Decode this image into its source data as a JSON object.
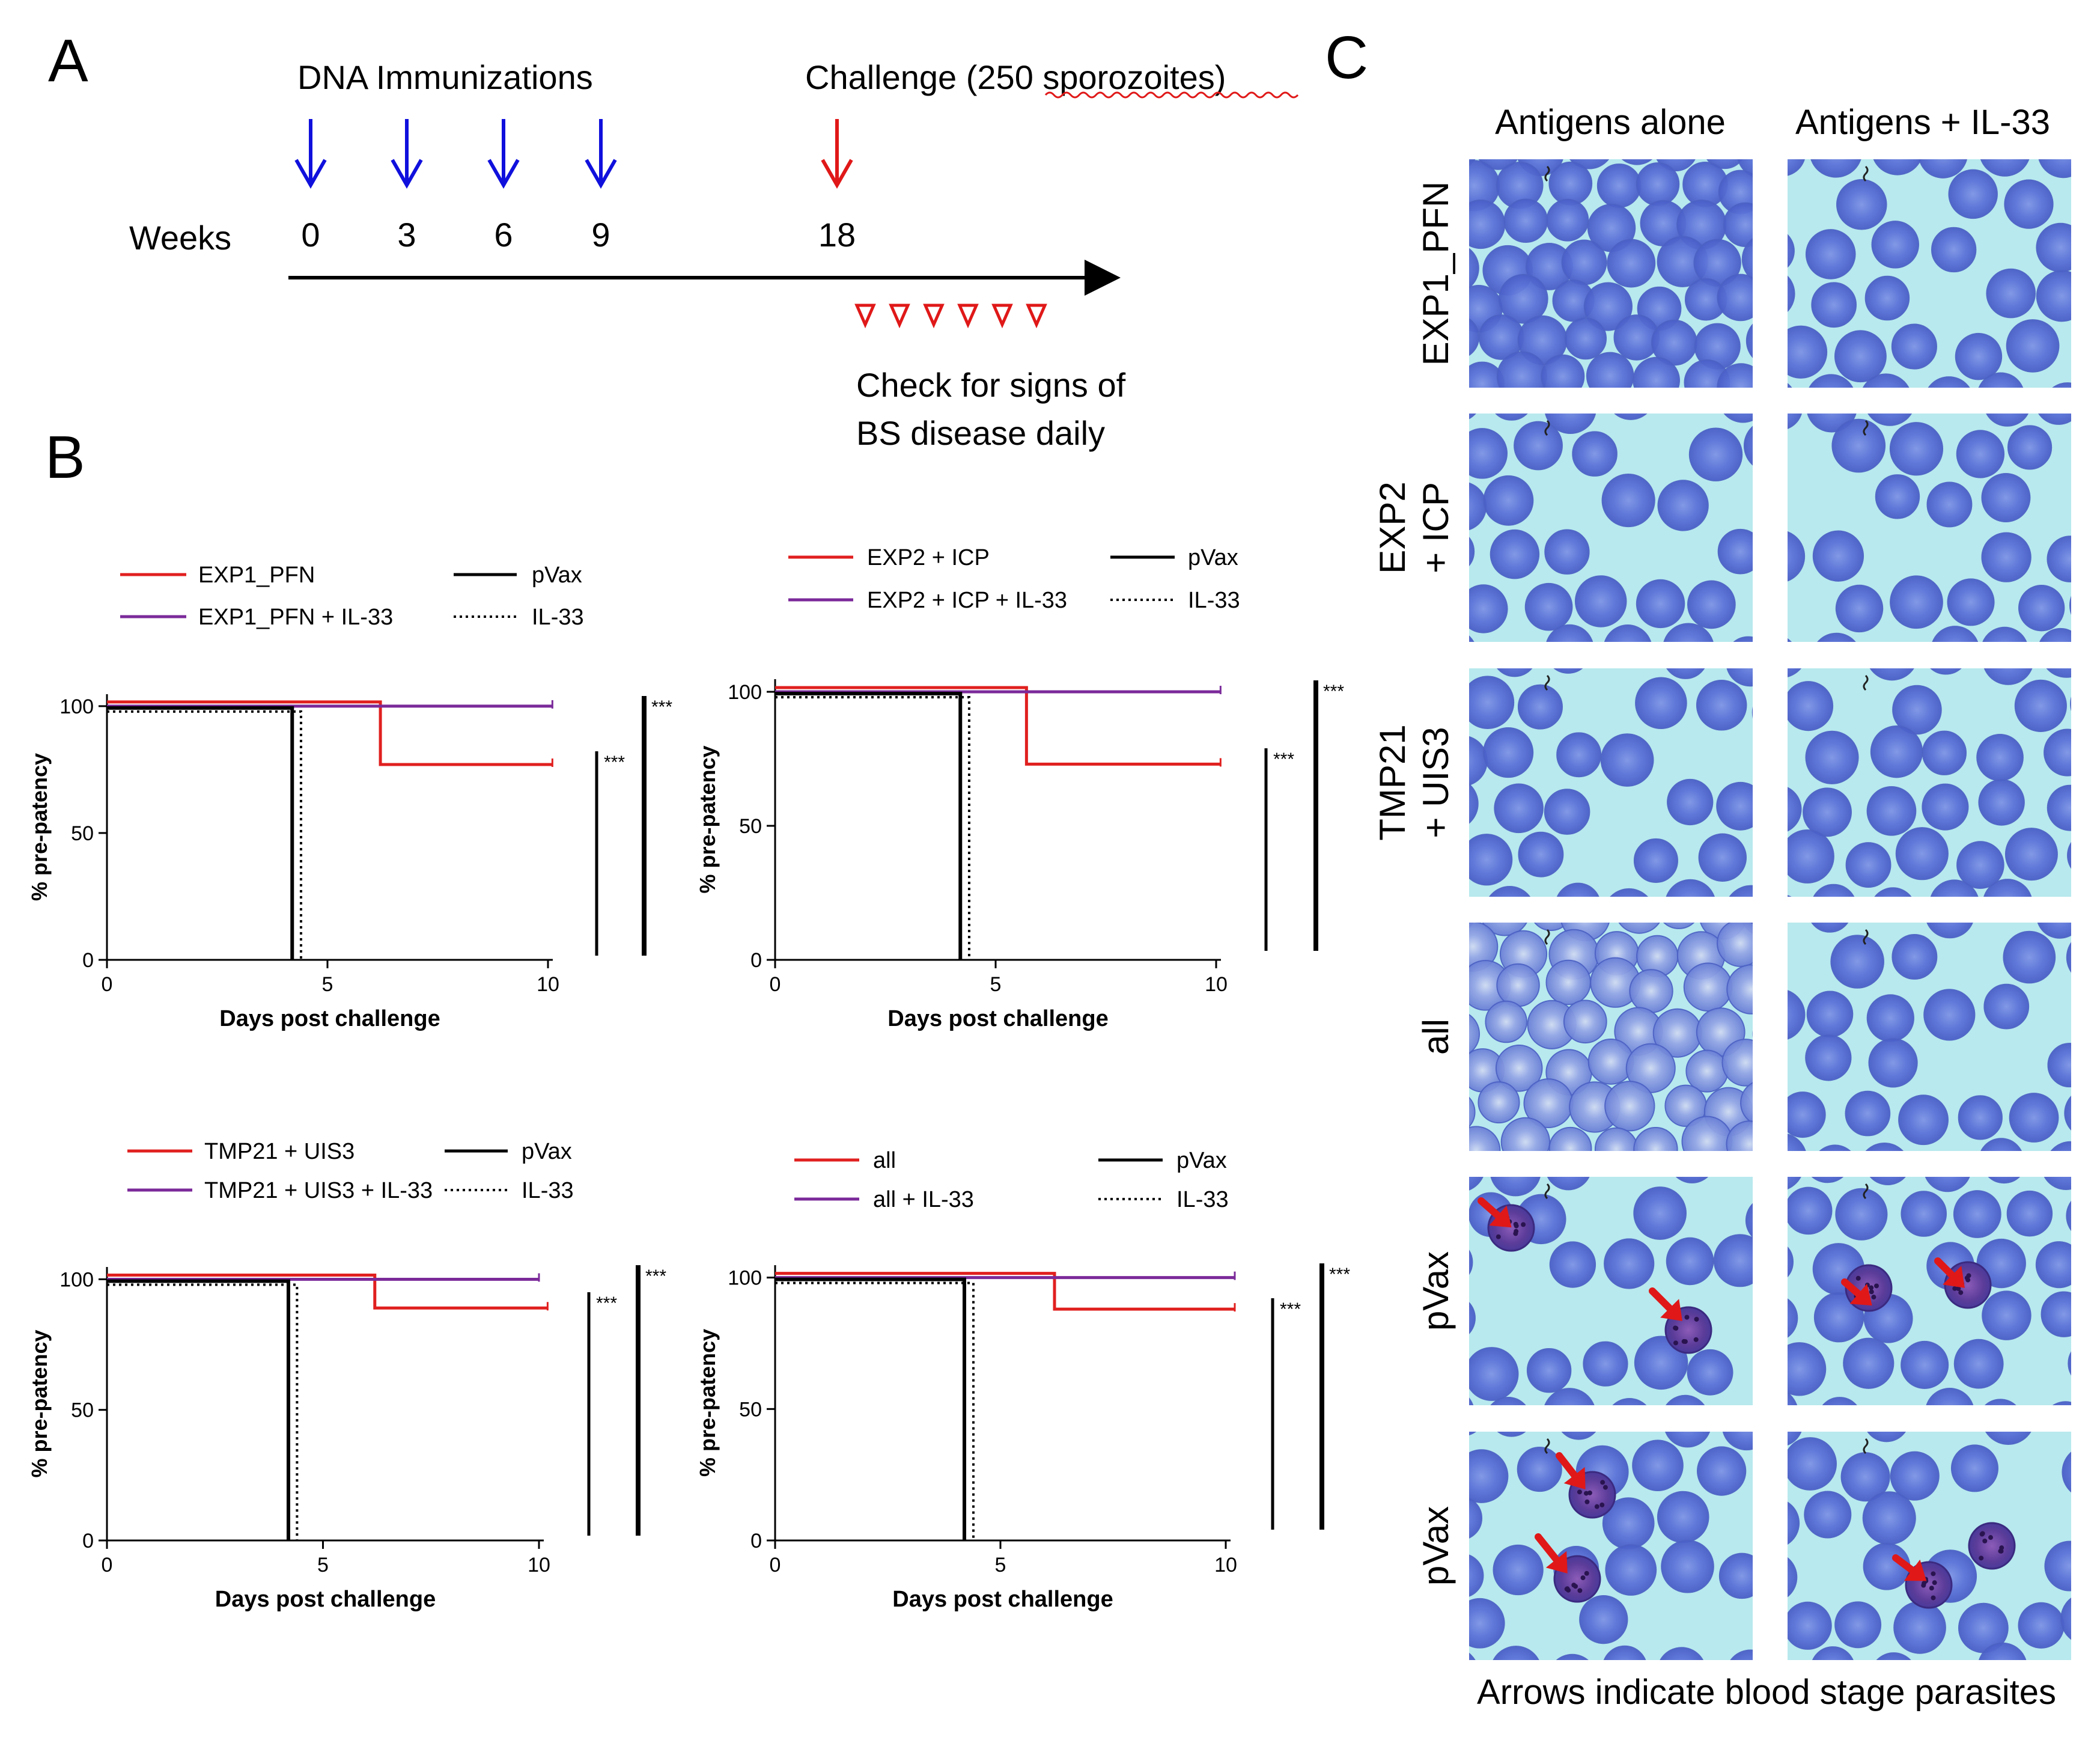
{
  "panel_a": {
    "letter": "A",
    "dna_title": "DNA Immunizations",
    "challenge_title": "Challenge (250 sporozoites)",
    "weeks_label": "Weeks",
    "weeks": [
      "0",
      "3",
      "6",
      "9",
      "18"
    ],
    "check_line1": "Check for signs of",
    "check_line2": "BS disease daily",
    "immunization_arrow_color": "#1010dd",
    "challenge_arrow_color": "#e01818",
    "daily_marker_count": 6
  },
  "panel_b": {
    "letter": "B"
  },
  "panel_c": {
    "letter": "C",
    "col_headers": [
      "Antigens alone",
      "Antigens + IL-33"
    ],
    "row_labels": [
      [
        "EXP1_PFN"
      ],
      [
        "EXP2",
        "+ ICP"
      ],
      [
        "TMP21",
        "+ UIS3"
      ],
      [
        "all"
      ],
      [
        "pVax"
      ],
      [
        "pVax"
      ]
    ],
    "caption": "Arrows indicate blood stage parasites"
  },
  "chart_data": [
    {
      "type": "line",
      "id": "exp1",
      "title": "",
      "xlabel": "Days post challenge",
      "ylabel": "% pre-patency",
      "xlim": [
        0,
        10
      ],
      "ylim": [
        0,
        100
      ],
      "xticks": [
        "0",
        "5",
        "10"
      ],
      "yticks": [
        "0",
        "50",
        "100"
      ],
      "legend": [
        [
          "EXP1_PFN",
          "pVax"
        ],
        [
          "EXP1_PFN + IL-33",
          "IL-33"
        ]
      ],
      "series": [
        {
          "name": "EXP1_PFN",
          "color": "#e0201f",
          "dash": "solid",
          "x": [
            0,
            6.2,
            6.2,
            10.1
          ],
          "y": [
            100,
            100,
            77,
            77
          ]
        },
        {
          "name": "EXP1_PFN + IL-33",
          "color": "#7b2a9a",
          "dash": "solid",
          "x": [
            0,
            10.1
          ],
          "y": [
            100,
            100
          ]
        },
        {
          "name": "pVax",
          "color": "#000000",
          "dash": "solid",
          "x": [
            0,
            4.2,
            4.2
          ],
          "y": [
            100,
            100,
            0
          ]
        },
        {
          "name": "IL-33",
          "color": "#000000",
          "dash": "dotted",
          "x": [
            0,
            4.4,
            4.4
          ],
          "y": [
            100,
            100,
            0
          ]
        }
      ],
      "significance": [
        "***",
        "***"
      ]
    },
    {
      "type": "line",
      "id": "exp2",
      "title": "",
      "xlabel": "Days post challenge",
      "ylabel": "% pre-patency",
      "xlim": [
        0,
        10
      ],
      "ylim": [
        0,
        100
      ],
      "xticks": [
        "0",
        "5",
        "10"
      ],
      "yticks": [
        "0",
        "50",
        "100"
      ],
      "legend": [
        [
          "EXP2 + ICP",
          "pVax"
        ],
        [
          "EXP2 + ICP + IL-33",
          "IL-33"
        ]
      ],
      "series": [
        {
          "name": "EXP2 + ICP",
          "color": "#e0201f",
          "dash": "solid",
          "x": [
            0,
            5.7,
            5.7,
            10.1
          ],
          "y": [
            100,
            100,
            73,
            73
          ]
        },
        {
          "name": "EXP2 + ICP + IL-33",
          "color": "#7b2a9a",
          "dash": "solid",
          "x": [
            0,
            10.1
          ],
          "y": [
            100,
            100
          ]
        },
        {
          "name": "pVax",
          "color": "#000000",
          "dash": "solid",
          "x": [
            0,
            4.2,
            4.2
          ],
          "y": [
            100,
            100,
            0
          ]
        },
        {
          "name": "IL-33",
          "color": "#000000",
          "dash": "dotted",
          "x": [
            0,
            4.4,
            4.4
          ],
          "y": [
            100,
            100,
            0
          ]
        }
      ],
      "significance": [
        "***",
        "***"
      ]
    },
    {
      "type": "line",
      "id": "tmp21",
      "title": "",
      "xlabel": "Days post challenge",
      "ylabel": "% pre-patency",
      "xlim": [
        0,
        10
      ],
      "ylim": [
        0,
        100
      ],
      "xticks": [
        "0",
        "5",
        "10"
      ],
      "yticks": [
        "0",
        "50",
        "100"
      ],
      "legend": [
        [
          "TMP21 + UIS3",
          "pVax"
        ],
        [
          "TMP21 + UIS3 + IL-33",
          "IL-33"
        ]
      ],
      "series": [
        {
          "name": "TMP21 + UIS3",
          "color": "#e0201f",
          "dash": "solid",
          "x": [
            0,
            6.2,
            6.2,
            10.2
          ],
          "y": [
            100,
            100,
            89,
            89
          ]
        },
        {
          "name": "TMP21 + UIS3 + IL-33",
          "color": "#7b2a9a",
          "dash": "solid",
          "x": [
            0,
            10.0
          ],
          "y": [
            100,
            100
          ]
        },
        {
          "name": "pVax",
          "color": "#000000",
          "dash": "solid",
          "x": [
            0,
            4.2,
            4.2
          ],
          "y": [
            100,
            100,
            0
          ]
        },
        {
          "name": "IL-33",
          "color": "#000000",
          "dash": "dotted",
          "x": [
            0,
            4.4,
            4.4
          ],
          "y": [
            100,
            100,
            0
          ]
        }
      ],
      "significance": [
        "***",
        "***"
      ]
    },
    {
      "type": "line",
      "id": "all",
      "title": "",
      "xlabel": "Days post challenge",
      "ylabel": "% pre-patency",
      "xlim": [
        0,
        10
      ],
      "ylim": [
        0,
        100
      ],
      "xticks": [
        "0",
        "5",
        "10"
      ],
      "yticks": [
        "0",
        "50",
        "100"
      ],
      "legend": [
        [
          "all",
          "pVax"
        ],
        [
          "all + IL-33",
          "IL-33"
        ]
      ],
      "series": [
        {
          "name": "all",
          "color": "#e0201f",
          "dash": "solid",
          "x": [
            0,
            6.2,
            6.2,
            10.2
          ],
          "y": [
            100,
            100,
            88,
            88
          ]
        },
        {
          "name": "all + IL-33",
          "color": "#7b2a9a",
          "dash": "solid",
          "x": [
            0,
            10.2
          ],
          "y": [
            100,
            100
          ]
        },
        {
          "name": "pVax",
          "color": "#000000",
          "dash": "solid",
          "x": [
            0,
            4.2,
            4.2
          ],
          "y": [
            100,
            100,
            0
          ]
        },
        {
          "name": "IL-33",
          "color": "#000000",
          "dash": "dotted",
          "x": [
            0,
            4.4,
            4.4
          ],
          "y": [
            100,
            100,
            0
          ]
        }
      ],
      "significance": [
        "***",
        "***"
      ]
    }
  ]
}
